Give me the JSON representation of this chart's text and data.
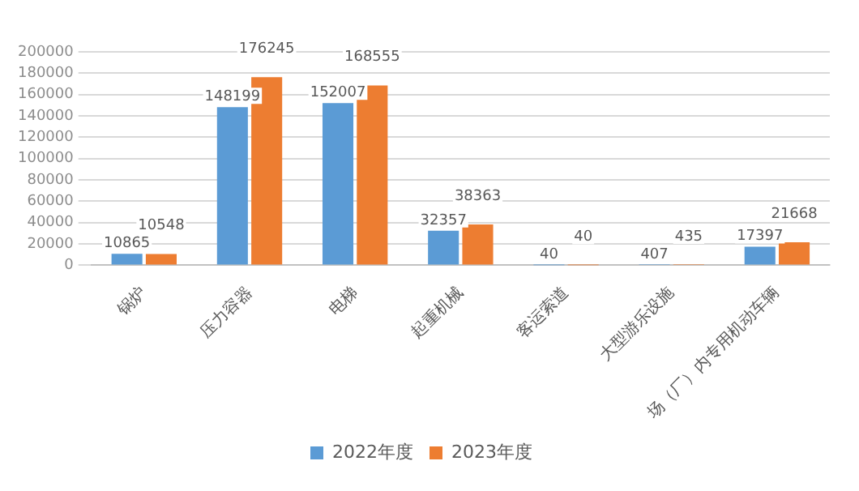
{
  "chart_data": {
    "type": "bar",
    "categories": [
      "锅炉",
      "压力容器",
      "电梯",
      "起重机械",
      "客运索道",
      "大型游乐设施",
      "场（厂）内专用机动车辆"
    ],
    "series": [
      {
        "name": "2022年度",
        "color": "#5b9bd5",
        "values": [
          10865,
          148199,
          152007,
          32357,
          40,
          407,
          17397
        ]
      },
      {
        "name": "2023年度",
        "color": "#ed7d31",
        "values": [
          10548,
          176245,
          168555,
          38363,
          40,
          435,
          21668
        ]
      }
    ],
    "ylim": [
      0,
      200000
    ],
    "yticks": [
      0,
      20000,
      40000,
      60000,
      80000,
      100000,
      120000,
      140000,
      160000,
      180000,
      200000
    ],
    "grid": "y",
    "legend": "bottom",
    "data_labels": true
  }
}
